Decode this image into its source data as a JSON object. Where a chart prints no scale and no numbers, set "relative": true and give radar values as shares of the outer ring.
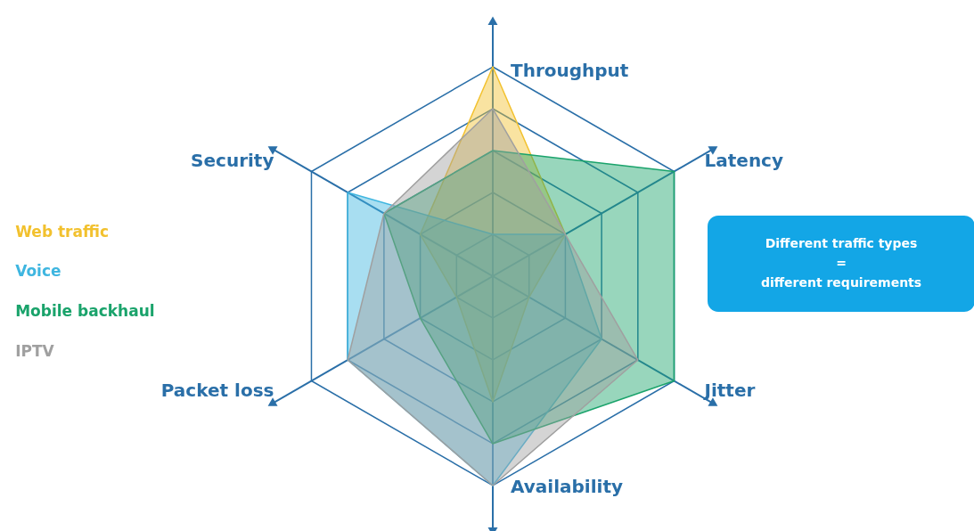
{
  "chart_data": {
    "type": "radar",
    "relative": true,
    "grid": true,
    "legend": "left",
    "categories": [
      "Throughput",
      "Latency",
      "Jitter",
      "Availability",
      "Packet loss",
      "Security"
    ],
    "series": [
      {
        "name": "Web traffic",
        "color": "#f2c12e",
        "values": [
          1.0,
          0.4,
          0.2,
          0.6,
          0.2,
          0.4
        ]
      },
      {
        "name": "Voice",
        "color": "#3fb6e0",
        "values": [
          0.2,
          0.4,
          0.6,
          1.0,
          0.8,
          0.8
        ]
      },
      {
        "name": "Mobile backhaul",
        "color": "#1aa36b",
        "values": [
          0.6,
          1.0,
          1.0,
          0.8,
          0.4,
          0.6
        ]
      },
      {
        "name": "IPTV",
        "color": "#a0a0a0",
        "values": [
          0.8,
          0.4,
          0.8,
          1.0,
          0.8,
          0.6
        ]
      }
    ],
    "annotations": [
      "Different traffic types\n=\ndifferent requirements"
    ]
  }
}
